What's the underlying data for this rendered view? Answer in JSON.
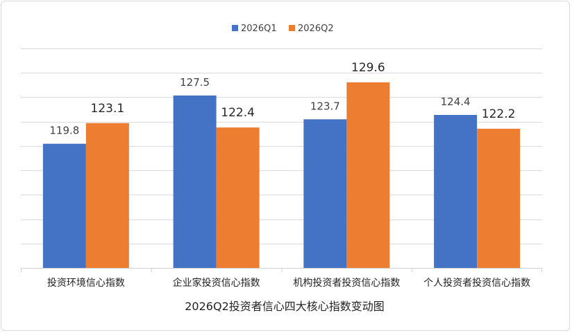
{
  "chart_data": {
    "type": "bar",
    "title": "2026Q2投资者信心四大核心指数变动图",
    "categories": [
      "投资环境信心指数",
      "企业家投资信心指数",
      "机构投资者投资信心指数",
      "个人投资者投资信心指数"
    ],
    "series": [
      {
        "name": "2026Q1",
        "color": "#4472c4",
        "values": [
          119.8,
          127.5,
          123.7,
          124.4
        ]
      },
      {
        "name": "2026Q2",
        "color": "#ed7d31",
        "values": [
          123.1,
          122.4,
          129.6,
          122.2
        ]
      }
    ],
    "ylim": [
      100,
      135
    ],
    "grid": true,
    "legend": "top-center",
    "xlabel": "",
    "ylabel": ""
  }
}
